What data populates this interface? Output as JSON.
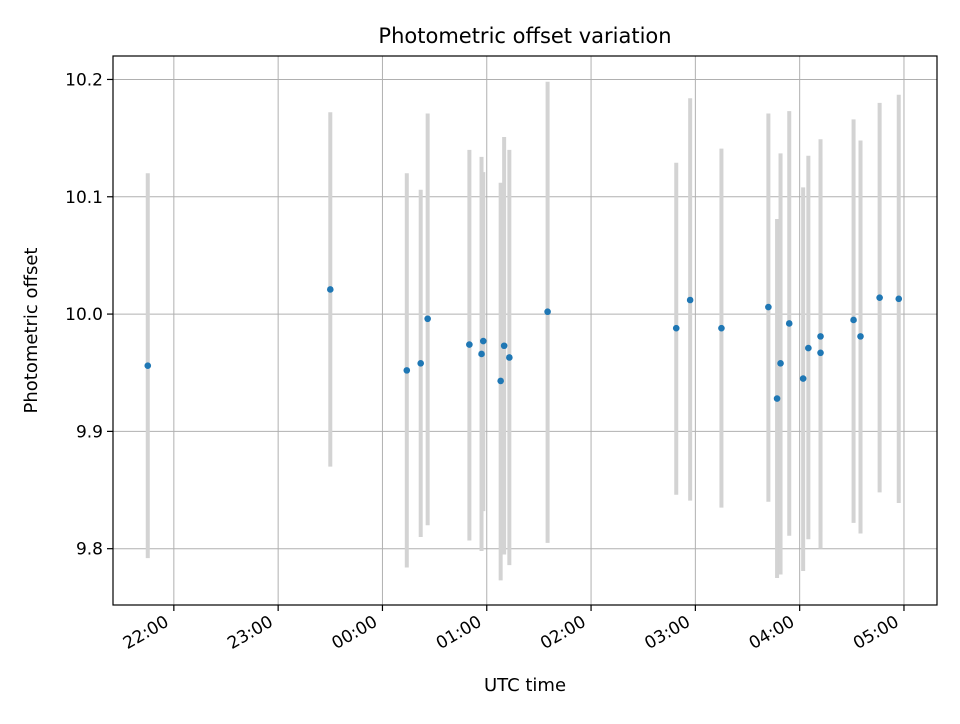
{
  "chart_data": {
    "type": "scatter",
    "title": "Photometric offset variation",
    "xlabel": "UTC time",
    "ylabel": "Photometric offset",
    "x_type": "time",
    "xlim": [
      "21:25",
      "05:19"
    ],
    "ylim": [
      9.752,
      10.22
    ],
    "x_ticks": [
      {
        "t": "22:00",
        "label": "22:00"
      },
      {
        "t": "23:00",
        "label": "23:00"
      },
      {
        "t": "00:00",
        "label": "00:00"
      },
      {
        "t": "01:00",
        "label": "01:00"
      },
      {
        "t": "02:00",
        "label": "02:00"
      },
      {
        "t": "03:00",
        "label": "03:00"
      },
      {
        "t": "04:00",
        "label": "04:00"
      },
      {
        "t": "05:00",
        "label": "05:00"
      }
    ],
    "y_ticks": [
      {
        "v": 9.8,
        "label": "9.8"
      },
      {
        "v": 9.9,
        "label": "9.9"
      },
      {
        "v": 10.0,
        "label": "10.0"
      },
      {
        "v": 10.1,
        "label": "10.1"
      },
      {
        "v": 10.2,
        "label": "10.2"
      }
    ],
    "grid": true,
    "colors": {
      "point": "#1f77b4",
      "errorbar": "#d3d3d3",
      "grid": "#b0b0b0"
    },
    "points": [
      {
        "t": "21:45",
        "y": 9.956,
        "lo": 9.792,
        "hi": 10.12
      },
      {
        "t": "23:30",
        "y": 10.021,
        "lo": 9.87,
        "hi": 10.172
      },
      {
        "t": "00:14",
        "y": 9.952,
        "lo": 9.784,
        "hi": 10.12
      },
      {
        "t": "00:22",
        "y": 9.958,
        "lo": 9.81,
        "hi": 10.106
      },
      {
        "t": "00:26",
        "y": 9.996,
        "lo": 9.82,
        "hi": 10.171
      },
      {
        "t": "00:50",
        "y": 9.974,
        "lo": 9.807,
        "hi": 10.14
      },
      {
        "t": "00:57",
        "y": 9.966,
        "lo": 9.798,
        "hi": 10.134
      },
      {
        "t": "00:58",
        "y": 9.977,
        "lo": 9.832,
        "hi": 10.121
      },
      {
        "t": "01:08",
        "y": 9.943,
        "lo": 9.773,
        "hi": 10.112
      },
      {
        "t": "01:10",
        "y": 9.973,
        "lo": 9.795,
        "hi": 10.151
      },
      {
        "t": "01:13",
        "y": 9.963,
        "lo": 9.786,
        "hi": 10.14
      },
      {
        "t": "01:35",
        "y": 10.002,
        "lo": 9.805,
        "hi": 10.198
      },
      {
        "t": "02:49",
        "y": 9.988,
        "lo": 9.846,
        "hi": 10.129
      },
      {
        "t": "02:57",
        "y": 10.012,
        "lo": 9.841,
        "hi": 10.184
      },
      {
        "t": "03:15",
        "y": 9.988,
        "lo": 9.835,
        "hi": 10.141
      },
      {
        "t": "03:42",
        "y": 10.006,
        "lo": 9.84,
        "hi": 10.171
      },
      {
        "t": "03:47",
        "y": 9.928,
        "lo": 9.775,
        "hi": 10.081
      },
      {
        "t": "03:49",
        "y": 9.958,
        "lo": 9.778,
        "hi": 10.137
      },
      {
        "t": "03:54",
        "y": 9.992,
        "lo": 9.811,
        "hi": 10.173
      },
      {
        "t": "04:02",
        "y": 9.945,
        "lo": 9.781,
        "hi": 10.108
      },
      {
        "t": "04:05",
        "y": 9.971,
        "lo": 9.808,
        "hi": 10.135
      },
      {
        "t": "04:12",
        "y": 9.981,
        "lo": 9.814,
        "hi": 10.149
      },
      {
        "t": "04:12",
        "y": 9.967,
        "lo": 9.8,
        "hi": 10.133
      },
      {
        "t": "04:31",
        "y": 9.995,
        "lo": 9.822,
        "hi": 10.166
      },
      {
        "t": "04:35",
        "y": 9.981,
        "lo": 9.813,
        "hi": 10.148
      },
      {
        "t": "04:46",
        "y": 10.014,
        "lo": 9.848,
        "hi": 10.18
      },
      {
        "t": "04:57",
        "y": 10.013,
        "lo": 9.839,
        "hi": 10.187
      }
    ]
  }
}
